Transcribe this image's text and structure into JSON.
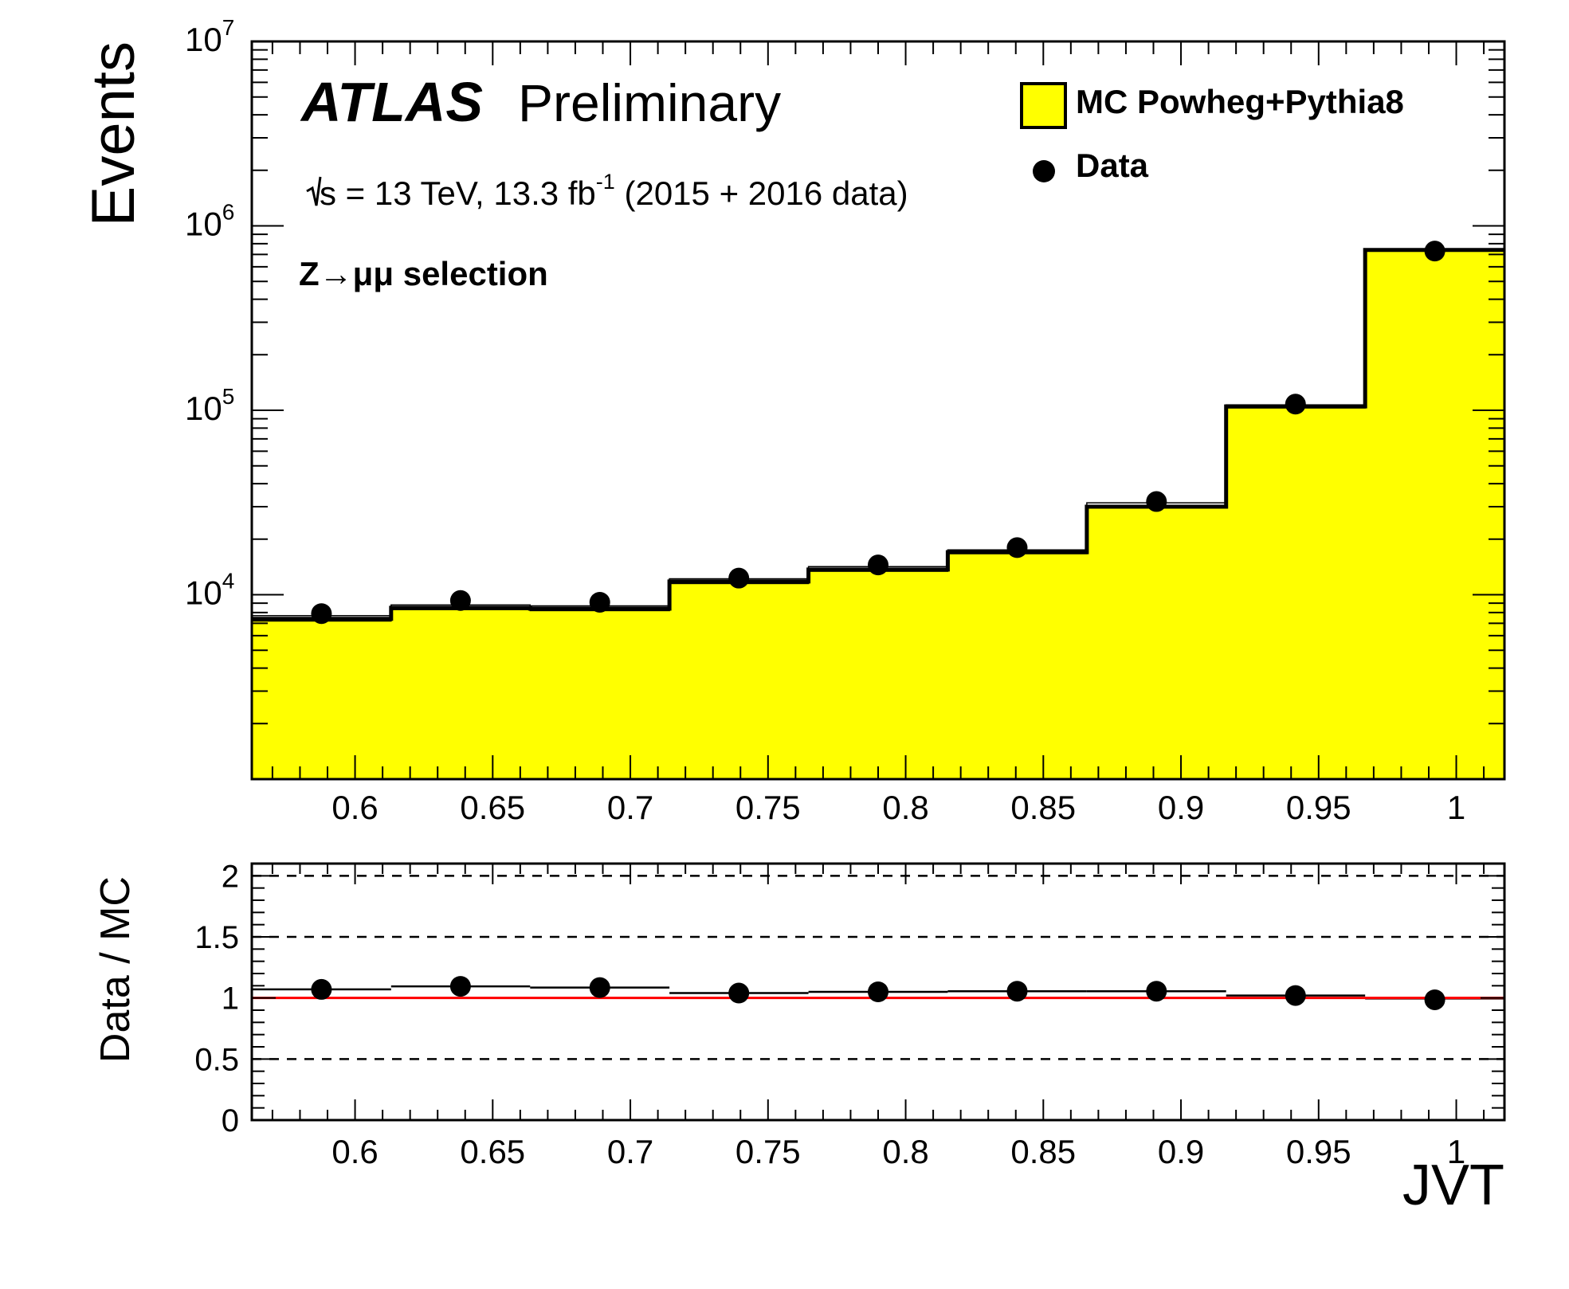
{
  "chart_data": [
    {
      "type": "histogram",
      "scale_y": "log",
      "ylabel": "Events",
      "xlim": [
        0.5625,
        1.0175
      ],
      "ylim": [
        1000,
        10000000
      ],
      "y_tick_labels": [
        {
          "base": "10",
          "exp": "4",
          "value": 10000
        },
        {
          "base": "10",
          "exp": "5",
          "value": 100000
        },
        {
          "base": "10",
          "exp": "6",
          "value": 1000000
        },
        {
          "base": "10",
          "exp": "7",
          "value": 10000000
        }
      ],
      "x_ticks": [
        0.6,
        0.65,
        0.7,
        0.75,
        0.8,
        0.85,
        0.9,
        0.95,
        1.0
      ],
      "x_tick_labels": [
        "0.6",
        "0.65",
        "0.7",
        "0.75",
        "0.8",
        "0.85",
        "0.9",
        "0.95",
        "1"
      ],
      "bin_edges": [
        0.5625,
        0.6131,
        0.6636,
        0.7142,
        0.7647,
        0.8153,
        0.8658,
        0.9164,
        0.9669,
        1.0175
      ],
      "series": [
        {
          "name": "MC Powheg+Pythia8",
          "kind": "filled-step",
          "color": "#ffff00",
          "edge_color": "#000000",
          "values": [
            7400,
            8500,
            8400,
            11800,
            13700,
            17000,
            30000,
            105000,
            740000
          ],
          "error_band": [
            [
              7200,
              7700
            ],
            [
              8300,
              8800
            ],
            [
              8200,
              8700
            ],
            [
              11500,
              12200
            ],
            [
              13400,
              14200
            ],
            [
              16700,
              17500
            ],
            [
              29500,
              31500
            ],
            [
              103000,
              107000
            ],
            [
              735000,
              748000
            ]
          ]
        },
        {
          "name": "Data",
          "kind": "points",
          "color": "#000000",
          "x": [
            0.5878,
            0.6383,
            0.6889,
            0.7394,
            0.79,
            0.8405,
            0.8911,
            0.9416,
            0.9922
          ],
          "values": [
            7900,
            9300,
            9100,
            12300,
            14500,
            18000,
            32000,
            108000,
            730000
          ]
        }
      ],
      "title": "ATLAS",
      "subtitle": "Preliminary",
      "annotations": [
        {
          "prefix": "s = 13 TeV, 13.3 fb",
          "sup": "-1",
          "suffix": " (2015 + 2016 data)"
        },
        {
          "text": "Z→μμ selection"
        }
      ],
      "legend": {
        "placement": "top-right",
        "entries": [
          "MC Powheg+Pythia8",
          "Data"
        ]
      },
      "grid": false
    },
    {
      "type": "ratio",
      "ylabel": "Data / MC",
      "xlabel": "JVT",
      "xlim": [
        0.5625,
        1.0175
      ],
      "ylim": [
        0,
        2.1
      ],
      "y_ticks": [
        0,
        0.5,
        1,
        1.5,
        2
      ],
      "y_tick_labels": [
        "0",
        "0.5",
        "1",
        "1.5",
        "2"
      ],
      "x_ticks": [
        0.6,
        0.65,
        0.7,
        0.75,
        0.8,
        0.85,
        0.9,
        0.95,
        1.0
      ],
      "x_tick_labels": [
        "0.6",
        "0.65",
        "0.7",
        "0.75",
        "0.8",
        "0.85",
        "0.9",
        "0.95",
        "1"
      ],
      "dashed_lines": [
        0.5,
        1.5,
        2.0
      ],
      "reference_line": {
        "value": 1.0,
        "color": "#ff0000"
      },
      "mc_uncertainty_band": [
        1.07,
        1.095,
        1.085,
        1.04,
        1.05,
        1.055,
        1.055,
        1.02,
        0.995
      ],
      "series": [
        {
          "name": "Data",
          "kind": "points",
          "color": "#000000",
          "x": [
            0.5878,
            0.6383,
            0.6889,
            0.7394,
            0.79,
            0.8405,
            0.8911,
            0.9416,
            0.9922
          ],
          "values": [
            1.07,
            1.095,
            1.085,
            1.04,
            1.05,
            1.055,
            1.055,
            1.02,
            0.985
          ]
        }
      ],
      "grid": false
    }
  ]
}
